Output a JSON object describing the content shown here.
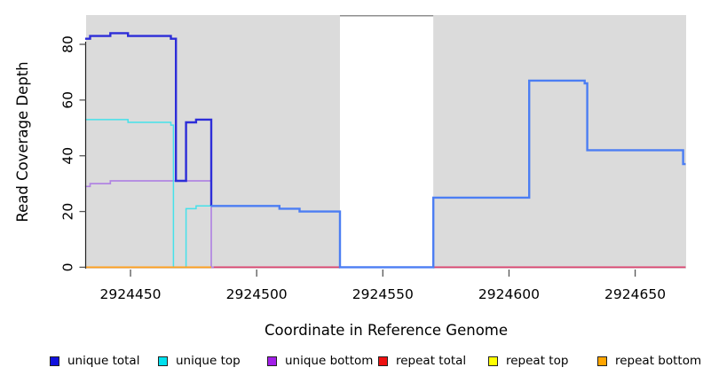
{
  "chart_data": {
    "type": "line",
    "subtype": "step",
    "title": "",
    "xlabel": "Coordinate in Reference Genome",
    "ylabel": "Read Coverage Depth",
    "xlim": [
      2924432.4,
      2924670.2
    ],
    "ylim": [
      -0.5,
      90.5
    ],
    "x_ticks": [
      2924450,
      2924500,
      2924550,
      2924600,
      2924650
    ],
    "y_ticks": [
      0,
      20,
      40,
      60,
      80
    ],
    "grid": "off",
    "panel_bg": "#DBDBDB",
    "masked_region": {
      "from": 2924533,
      "to": 2924570,
      "fill": "#FFFFFF",
      "top_border": "#8F8F8F"
    },
    "legend_position": "bottom",
    "legend": [
      {
        "label": "unique total",
        "color": "#1111DD"
      },
      {
        "label": "unique top",
        "color": "#00E0EE"
      },
      {
        "label": "unique bottom",
        "color": "#A21FE8"
      },
      {
        "label": "repeat total",
        "color": "#EE1111"
      },
      {
        "label": "repeat top",
        "color": "#FFFF00"
      },
      {
        "label": "repeat bottom",
        "color": "#FFA500"
      }
    ],
    "series": [
      {
        "name": "unique total",
        "color": "#2D2DD8",
        "width": 2.4,
        "split": {
          "at": 2924482,
          "color2": "#4C7EF3"
        },
        "points": [
          [
            2924432,
            82
          ],
          [
            2924434,
            83
          ],
          [
            2924442,
            84
          ],
          [
            2924449,
            83
          ],
          [
            2924466,
            82
          ],
          [
            2924468,
            31
          ],
          [
            2924472,
            52
          ],
          [
            2924476,
            53
          ],
          [
            2924482,
            22
          ],
          [
            2924509,
            21
          ],
          [
            2924517,
            20
          ],
          [
            2924533,
            0
          ],
          [
            2924570,
            25
          ],
          [
            2924608,
            67
          ],
          [
            2924630,
            66
          ],
          [
            2924631,
            42
          ],
          [
            2924669,
            37
          ],
          [
            2924670,
            37
          ]
        ]
      },
      {
        "name": "unique top",
        "color": "#45E1EA",
        "width": 1.5,
        "points": [
          [
            2924432,
            53
          ],
          [
            2924449,
            52
          ],
          [
            2924466,
            51
          ],
          [
            2924467,
            0
          ],
          [
            2924472,
            21
          ],
          [
            2924476,
            22
          ],
          [
            2924482,
            22
          ]
        ]
      },
      {
        "name": "unique bottom",
        "color": "#B185E2",
        "width": 1.7,
        "points": [
          [
            2924432,
            29
          ],
          [
            2924434,
            30
          ],
          [
            2924442,
            31
          ],
          [
            2924482,
            0
          ],
          [
            2924483,
            0
          ]
        ]
      },
      {
        "name": "repeat total",
        "color": "#DC4570",
        "width": 1.7,
        "points": [
          [
            2924432,
            0
          ],
          [
            2924670,
            0
          ]
        ]
      },
      {
        "name": "repeat top",
        "color": "#FFFF00",
        "width": 1.4,
        "points": [
          [
            2924432,
            0
          ],
          [
            2924482,
            0
          ]
        ]
      },
      {
        "name": "repeat bottom",
        "color": "#FFA11F",
        "width": 1.7,
        "points": [
          [
            2924432,
            0
          ],
          [
            2924482,
            0
          ]
        ]
      }
    ],
    "draw_order": [
      3,
      4,
      2,
      1,
      5,
      0
    ]
  },
  "legend_layout": {
    "lefts": [
      56,
      178,
      301,
      426,
      550,
      673
    ]
  }
}
